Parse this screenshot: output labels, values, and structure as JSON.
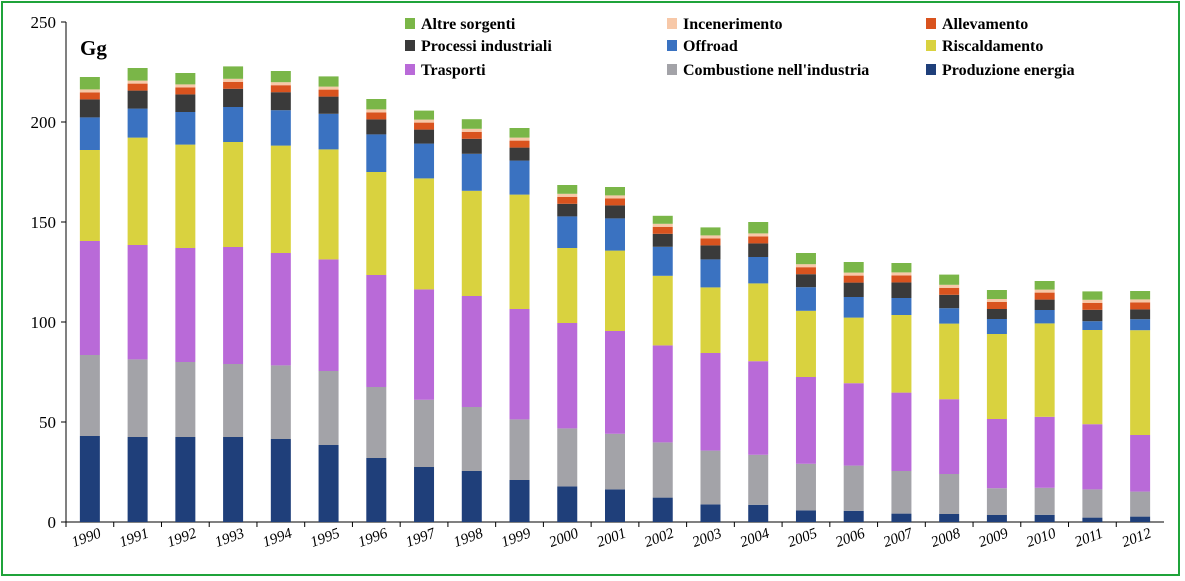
{
  "chart_data": {
    "type": "bar",
    "stacked": true,
    "unit_label": "Gg",
    "title": "",
    "xlabel": "",
    "ylabel": "",
    "ylim": [
      0,
      250
    ],
    "yticks": [
      0,
      50,
      100,
      150,
      200,
      250
    ],
    "grid": false,
    "legend_position": "top-right",
    "categories": [
      "1990",
      "1991",
      "1992",
      "1993",
      "1994",
      "1995",
      "1996",
      "1997",
      "1998",
      "1999",
      "2000",
      "2001",
      "2002",
      "2003",
      "2004",
      "2005",
      "2006",
      "2007",
      "2008",
      "2009",
      "2010",
      "2011",
      "2012"
    ],
    "series": [
      {
        "name": "Produzione energia",
        "color": "#1f3f7a",
        "values": [
          43,
          42.5,
          42.5,
          42.5,
          41.5,
          38.5,
          32,
          27.5,
          25.5,
          21,
          17.8,
          16.3,
          12.2,
          8.8,
          8.6,
          5.8,
          5.6,
          4.2,
          4,
          3.5,
          3.6,
          2.2,
          2.7
        ]
      },
      {
        "name": "Combustione nell'industria",
        "color": "#a3a3a8",
        "values": [
          40.5,
          38.8,
          37.5,
          36.5,
          36.8,
          37,
          35.5,
          33.6,
          32,
          30.3,
          29,
          27.8,
          27.6,
          26.9,
          25,
          23.3,
          22.6,
          21.3,
          20,
          13.4,
          13.5,
          14.1,
          12.5
        ]
      },
      {
        "name": "Trasporti",
        "color": "#b96ad8",
        "values": [
          57,
          57.2,
          57,
          58.5,
          56.2,
          55.8,
          56,
          55.2,
          55.5,
          55.2,
          52.7,
          51.4,
          48.5,
          48.8,
          46.8,
          43.4,
          41.2,
          39.2,
          37.4,
          34.6,
          35.5,
          32.6,
          28.3
        ]
      },
      {
        "name": "Riscaldamento",
        "color": "#d9d23f",
        "values": [
          45.5,
          53.7,
          51.7,
          52.5,
          53.7,
          55,
          51.5,
          55.5,
          52.6,
          57.2,
          37.5,
          40.2,
          34.8,
          32.8,
          38.9,
          33.1,
          32.8,
          38.8,
          37.8,
          42.5,
          46.7,
          47.1,
          52.4
        ]
      },
      {
        "name": "Offroad",
        "color": "#3a72c1",
        "values": [
          16.3,
          14.5,
          16.3,
          17.5,
          17.7,
          17.8,
          18.8,
          17.4,
          18.5,
          17,
          15.8,
          16.1,
          14.5,
          14,
          13.2,
          11.8,
          10.3,
          8.5,
          7.7,
          7.5,
          6.7,
          4.4,
          5.5
        ]
      },
      {
        "name": "Processi industriali",
        "color": "#3a3a3a",
        "values": [
          9,
          9,
          8.8,
          9.1,
          9,
          8.6,
          7.5,
          7,
          7.5,
          6.5,
          6.3,
          6.5,
          6.5,
          7,
          6.8,
          6.5,
          7.2,
          7.8,
          6.7,
          5,
          5.2,
          5.7,
          4.9
        ]
      },
      {
        "name": "Allevamento",
        "color": "#d9531e",
        "values": [
          3.5,
          3.5,
          3.5,
          3.5,
          3.5,
          3.5,
          3.5,
          3.5,
          3.5,
          3.5,
          3.5,
          3.5,
          3.5,
          3.5,
          3.5,
          3.5,
          3.5,
          3.5,
          3.5,
          3.5,
          3.5,
          3.5,
          3.5
        ]
      },
      {
        "name": "Incenerimento",
        "color": "#f7c8a8",
        "values": [
          1.5,
          1.5,
          1.5,
          1.5,
          1.5,
          1.5,
          1.5,
          1.5,
          1.5,
          1.5,
          1.5,
          1.5,
          1.5,
          1.5,
          1.5,
          1.5,
          1.5,
          1.5,
          1.5,
          1.5,
          1.5,
          1.5,
          1.5
        ]
      },
      {
        "name": "Altre sorgenti",
        "color": "#7ab648",
        "values": [
          6.2,
          6.3,
          5.7,
          6.2,
          5.6,
          5.1,
          5.2,
          4.5,
          4.8,
          4.8,
          4.4,
          4.2,
          4,
          4,
          5.7,
          5.6,
          5.3,
          4.7,
          5.1,
          4.5,
          4.3,
          4.2,
          4.2
        ]
      }
    ],
    "legend_order": [
      "Altre sorgenti",
      "Incenerimento",
      "Allevamento",
      "Processi industriali",
      "Offroad",
      "Riscaldamento",
      "Trasporti",
      "Combustione nell'industria",
      "Produzione energia"
    ]
  }
}
